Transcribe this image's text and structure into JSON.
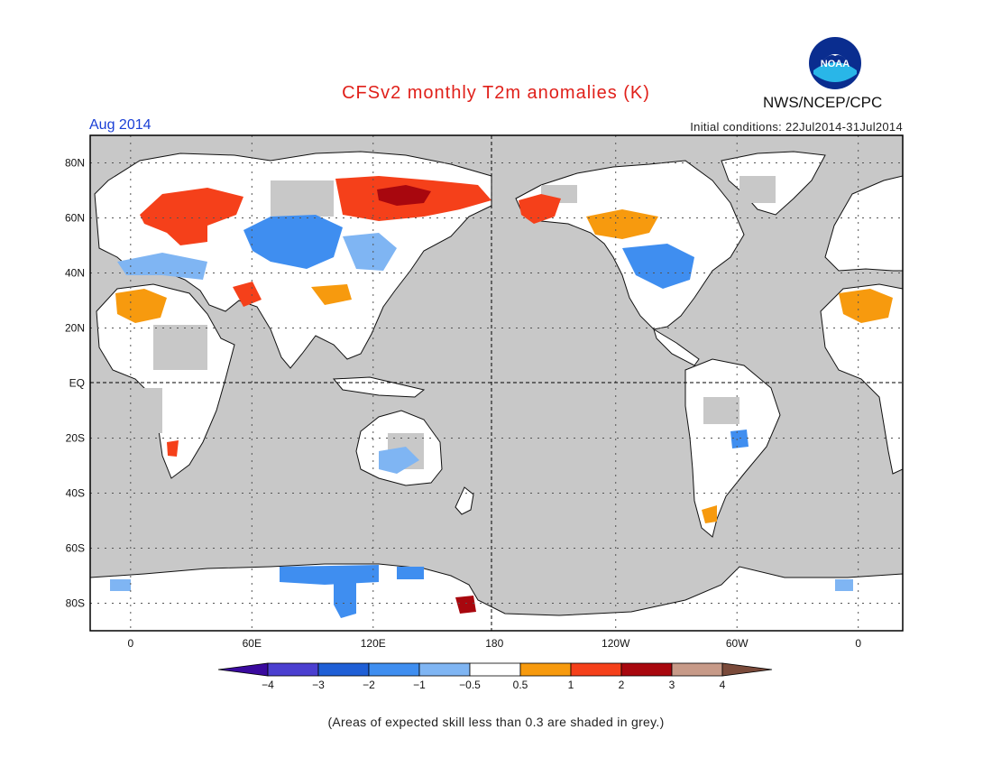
{
  "header": {
    "title": "CFSv2 monthly T2m anomalies (K)",
    "org": "NWS/NCEP/CPC",
    "logo_text": "NOAA",
    "month": "Aug 2014",
    "initial_conditions": "Initial conditions: 22Jul2014-31Jul2014"
  },
  "map": {
    "projection": "equirectangular",
    "lon_range": [
      -20,
      382
    ],
    "lat_range": [
      -90,
      90
    ],
    "ocean_color": "#c8c8c8",
    "land_color": "#ffffff",
    "lat_labels": [
      "80N",
      "60N",
      "40N",
      "20N",
      "EQ",
      "20S",
      "40S",
      "60S",
      "80S"
    ],
    "lon_labels": [
      "0",
      "60E",
      "120E",
      "180",
      "120W",
      "60W",
      "0"
    ],
    "grid": "dotted",
    "anomalies": [
      {
        "region": "Scandinavia / NW Russia",
        "level": "1 to 2"
      },
      {
        "region": "Eastern Siberia",
        "level": "2 to 3"
      },
      {
        "region": "Alaska",
        "level": "1 to 2"
      },
      {
        "region": "Central Asia",
        "level": "-1 to -2"
      },
      {
        "region": "Central United States",
        "level": "-1 to -2"
      },
      {
        "region": "Sahara",
        "level": "0.5 to 1"
      },
      {
        "region": "Antarctic coast",
        "level": "-1 to -2"
      }
    ]
  },
  "colorbar": {
    "boundaries": [
      "-4",
      "-3",
      "-2",
      "-1",
      "-0.5",
      "0.5",
      "1",
      "2",
      "3",
      "4"
    ],
    "colors": [
      "#3a0a9e",
      "#4b3fd0",
      "#1f5fd6",
      "#3f8ef0",
      "#7fb5f3",
      "#ffffff",
      "#f79a0e",
      "#f5401a",
      "#a8070e",
      "#c79a88",
      "#7a4a3a"
    ]
  },
  "footer": {
    "note": "(Areas of expected skill less than 0.3 are shaded in grey.)"
  }
}
